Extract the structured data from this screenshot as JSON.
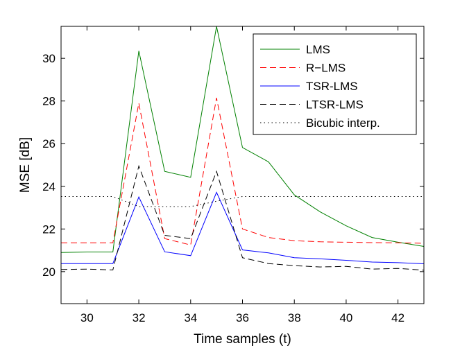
{
  "chart_data": {
    "type": "line",
    "xlabel": "Time samples (t)",
    "ylabel": "MSE [dB]",
    "xlim": [
      29,
      43
    ],
    "ylim": [
      18.5,
      31.5
    ],
    "xticks": [
      30,
      32,
      34,
      36,
      38,
      40,
      42
    ],
    "yticks": [
      20,
      22,
      24,
      26,
      28,
      30
    ],
    "grid": false,
    "legend_position": "top-right",
    "x": [
      29,
      30,
      31,
      32,
      33,
      34,
      35,
      36,
      37,
      38,
      39,
      40,
      41,
      42,
      43
    ],
    "series": [
      {
        "name": "LMS",
        "color": "#008000",
        "dash": "solid",
        "values": [
          20.9,
          20.92,
          20.92,
          30.35,
          24.7,
          24.42,
          31.5,
          25.82,
          25.15,
          23.6,
          22.8,
          22.15,
          21.6,
          21.38,
          21.18
        ]
      },
      {
        "name": "R−LMS",
        "color": "#ff0000",
        "dash": "dashed",
        "values": [
          21.35,
          21.35,
          21.35,
          27.9,
          21.55,
          21.25,
          28.15,
          22.0,
          21.6,
          21.45,
          21.4,
          21.38,
          21.36,
          21.35,
          21.33
        ]
      },
      {
        "name": "TSR-LMS",
        "color": "#0000ff",
        "dash": "solid",
        "values": [
          20.38,
          20.38,
          20.38,
          23.5,
          20.93,
          20.75,
          23.72,
          21.02,
          20.88,
          20.65,
          20.6,
          20.53,
          20.45,
          20.42,
          20.37
        ]
      },
      {
        "name": "LTSR-LMS",
        "color": "#000000",
        "dash": "dashed",
        "values": [
          20.1,
          20.12,
          20.08,
          24.95,
          21.7,
          21.55,
          24.7,
          20.65,
          20.38,
          20.28,
          20.22,
          20.25,
          20.12,
          20.15,
          20.07
        ]
      },
      {
        "name": "Bicubic interp.",
        "color": "#000000",
        "dash": "dotted",
        "values": [
          23.52,
          23.52,
          23.52,
          23.05,
          23.05,
          23.05,
          23.3,
          23.52,
          23.52,
          23.52,
          23.52,
          23.52,
          23.52,
          23.52,
          23.52
        ]
      }
    ]
  }
}
